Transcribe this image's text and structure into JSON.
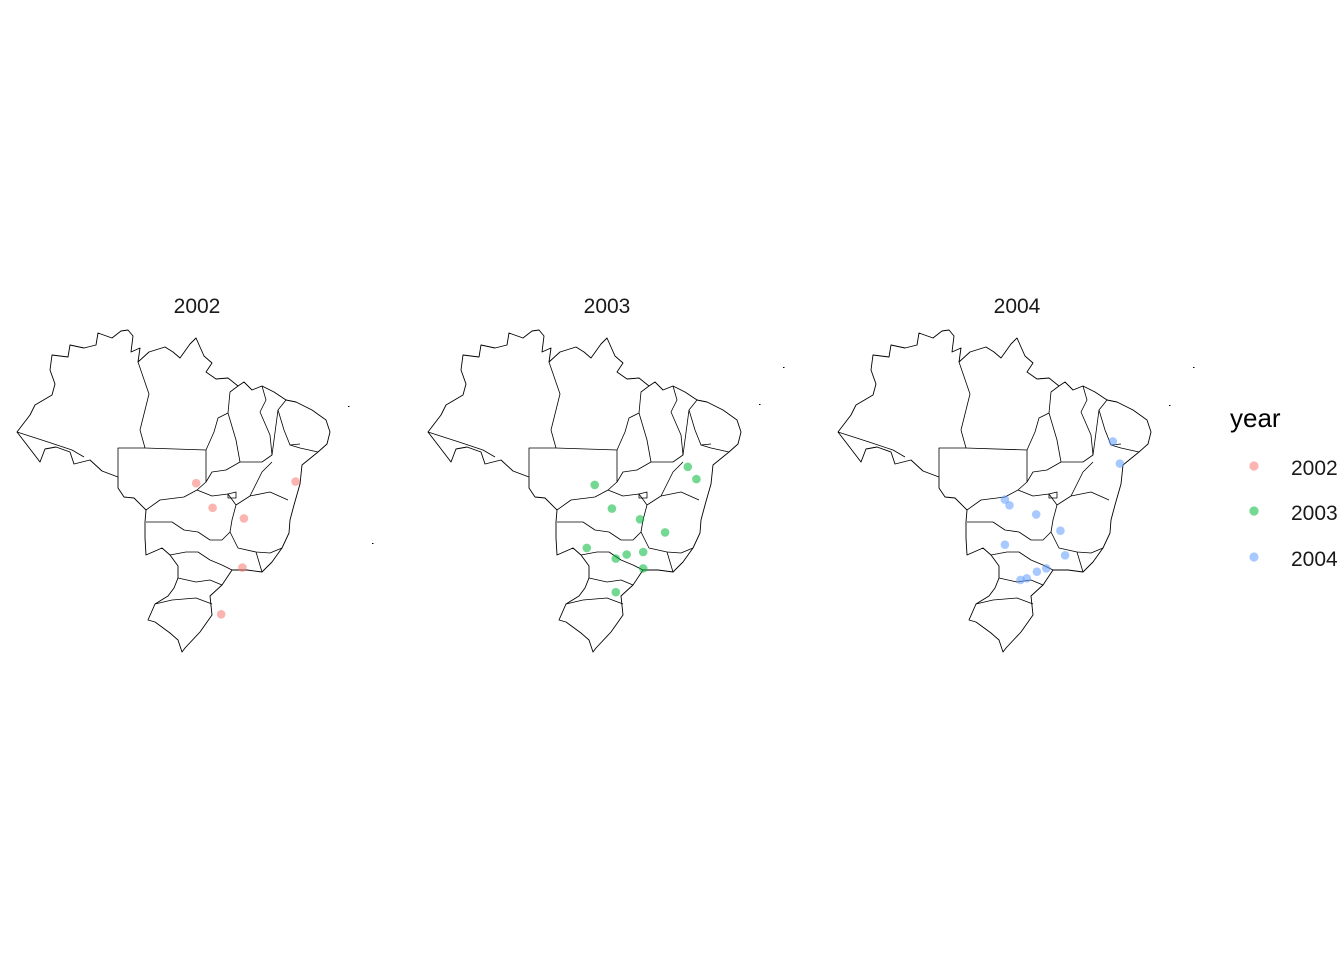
{
  "chart_data": {
    "type": "scatter",
    "facet_variable": "year",
    "facets": [
      "2002",
      "2003",
      "2004"
    ],
    "legend": {
      "title": "year",
      "position": "right",
      "entries": [
        "2002",
        "2003",
        "2004"
      ]
    },
    "colors": {
      "2002": "#F8766D",
      "2003": "#00BA38",
      "2004": "#619CFF"
    },
    "point_alpha": 0.55,
    "grid": false,
    "axes_visible": false,
    "xlim": [
      -74,
      -34
    ],
    "ylim": [
      -34,
      5.3
    ],
    "series": [
      {
        "name": "2002",
        "points": [
          {
            "x": -51.1,
            "y": -13.4
          },
          {
            "x": -49.0,
            "y": -16.4
          },
          {
            "x": -45.0,
            "y": -17.7
          },
          {
            "x": -38.4,
            "y": -13.2
          },
          {
            "x": -45.2,
            "y": -23.7
          },
          {
            "x": -47.9,
            "y": -29.4
          }
        ]
      },
      {
        "name": "2003",
        "points": [
          {
            "x": -52.6,
            "y": -13.6
          },
          {
            "x": -50.4,
            "y": -16.5
          },
          {
            "x": -46.8,
            "y": -17.8
          },
          {
            "x": -40.7,
            "y": -11.4
          },
          {
            "x": -39.6,
            "y": -12.9
          },
          {
            "x": -43.6,
            "y": -19.4
          },
          {
            "x": -53.6,
            "y": -21.3
          },
          {
            "x": -49.9,
            "y": -22.6
          },
          {
            "x": -48.5,
            "y": -22.1
          },
          {
            "x": -46.4,
            "y": -21.8
          },
          {
            "x": -46.4,
            "y": -23.8
          },
          {
            "x": -49.9,
            "y": -26.7
          }
        ]
      },
      {
        "name": "2004",
        "points": [
          {
            "x": -52.6,
            "y": -15.4
          },
          {
            "x": -52.0,
            "y": -16.1
          },
          {
            "x": -48.6,
            "y": -17.2
          },
          {
            "x": -38.8,
            "y": -8.3
          },
          {
            "x": -37.9,
            "y": -11.0
          },
          {
            "x": -45.5,
            "y": -19.2
          },
          {
            "x": -52.6,
            "y": -20.9
          },
          {
            "x": -44.9,
            "y": -22.2
          },
          {
            "x": -48.5,
            "y": -24.2
          },
          {
            "x": -47.3,
            "y": -23.8
          },
          {
            "x": -49.8,
            "y": -25.0
          },
          {
            "x": -50.6,
            "y": -25.2
          }
        ]
      }
    ]
  }
}
